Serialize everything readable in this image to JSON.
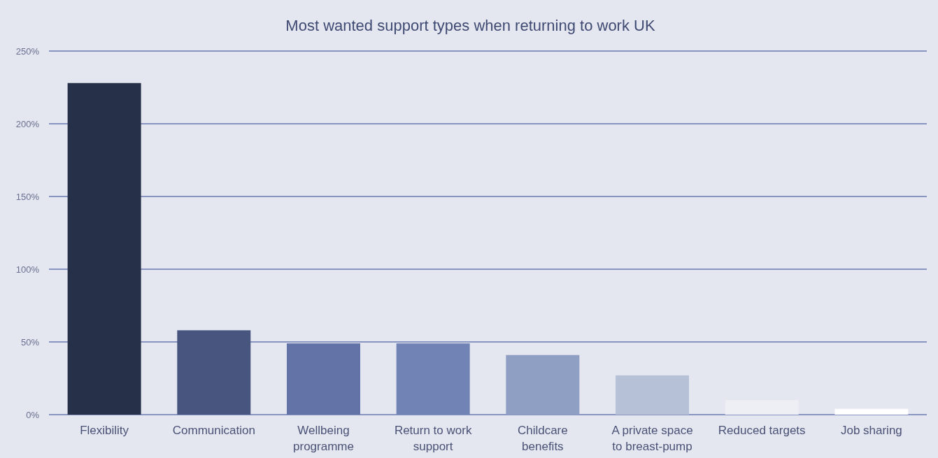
{
  "chart_data": {
    "type": "bar",
    "title": "Most wanted support types when returning to work UK",
    "categories": [
      "Flexibility",
      "Communication",
      "Wellbeing programme",
      "Return to work support",
      "Childcare benefits",
      "A private space to breast-pump",
      "Reduced targets",
      "Job sharing"
    ],
    "values": [
      228,
      58,
      49,
      49,
      41,
      27,
      10,
      4
    ],
    "colors": [
      "#273049",
      "#47557f",
      "#6373a8",
      "#7182b4",
      "#8f9fc4",
      "#b6c1d7",
      "#eeeff4",
      "#ffffff"
    ],
    "ylim": [
      0,
      250
    ],
    "yticks": [
      {
        "value": 0,
        "label": "0%"
      },
      {
        "value": 50,
        "label": "50%"
      },
      {
        "value": 100,
        "label": "100%"
      },
      {
        "value": 150,
        "label": "150%"
      },
      {
        "value": 200,
        "label": "200%"
      },
      {
        "value": 250,
        "label": "250%"
      }
    ],
    "grid": "y"
  }
}
